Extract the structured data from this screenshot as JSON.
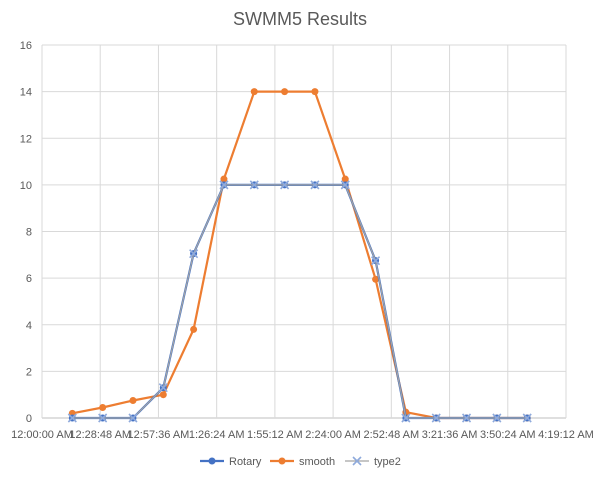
{
  "chart_data": {
    "type": "line",
    "title": "SWMM5 Results",
    "xlabel": "",
    "ylabel": "",
    "ylim": [
      0,
      16
    ],
    "yticks": [
      "0",
      "2",
      "4",
      "6",
      "8",
      "10",
      "12",
      "14",
      "16"
    ],
    "xticks": [
      "12:00:00 AM",
      "12:28:48 AM",
      "12:57:36 AM",
      "1:26:24 AM",
      "1:55:12 AM",
      "2:24:00 AM",
      "2:52:48 AM",
      "3:21:36 AM",
      "3:50:24 AM",
      "4:19:12 AM"
    ],
    "x": [
      "12:15:00 AM",
      "12:30:00 AM",
      "12:45:00 AM",
      "1:00:00 AM",
      "1:15:00 AM",
      "1:30:00 AM",
      "1:45:00 AM",
      "2:00:00 AM",
      "2:15:00 AM",
      "2:30:00 AM",
      "2:45:00 AM",
      "3:00:00 AM",
      "3:15:00 AM",
      "3:30:00 AM",
      "3:45:00 AM",
      "4:00:00 AM"
    ],
    "grid": true,
    "legend_position": "bottom",
    "series": [
      {
        "name": "Rotary",
        "color": "#4472C4",
        "marker": "circle",
        "values": [
          0,
          0,
          0,
          1.3,
          7.05,
          10,
          10,
          10,
          10,
          10,
          6.75,
          0,
          0,
          0,
          0,
          0
        ]
      },
      {
        "name": "smooth",
        "color": "#ED7D31",
        "marker": "circle",
        "values": [
          0.2,
          0.45,
          0.75,
          1.0,
          3.8,
          10.25,
          14.0,
          14.0,
          14.0,
          10.25,
          5.95,
          0.25,
          0,
          0,
          0,
          0
        ]
      },
      {
        "name": "type2",
        "color": "#A5A5A5",
        "marker": "x",
        "values": [
          0,
          0,
          0,
          1.3,
          7.05,
          10,
          10,
          10,
          10,
          10,
          6.75,
          0,
          0,
          0,
          0,
          0
        ]
      }
    ]
  }
}
